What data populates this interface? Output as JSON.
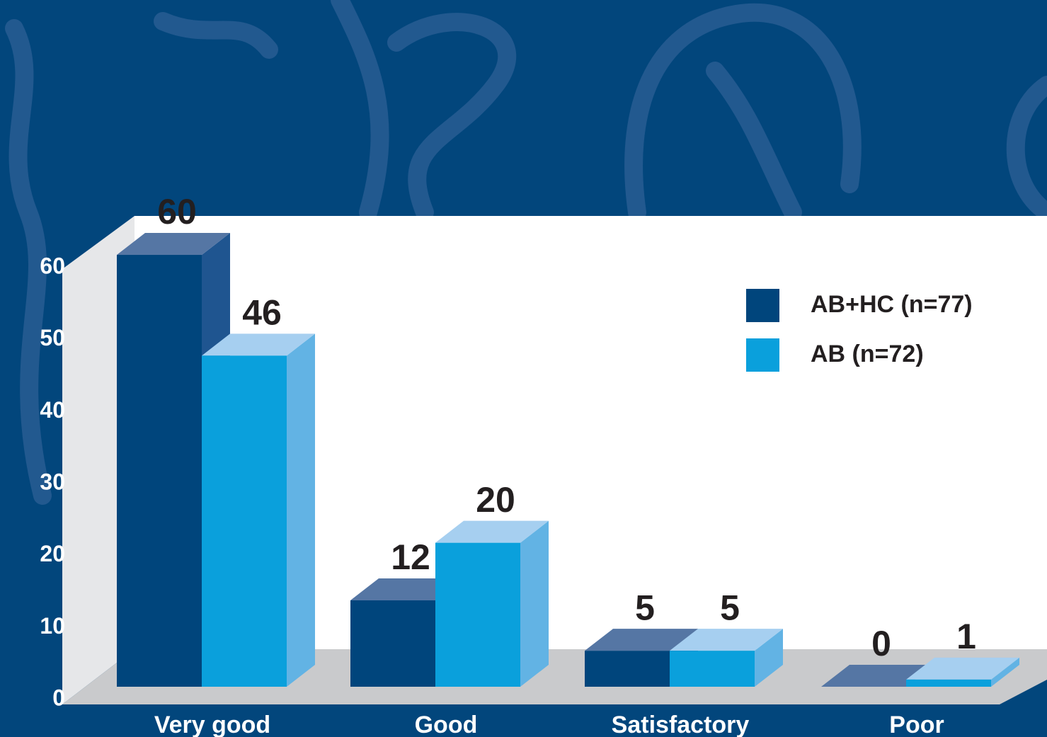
{
  "chart_data": {
    "type": "bar",
    "categories": [
      "Very good",
      "Good",
      "Satisfactory",
      "Poor"
    ],
    "series": [
      {
        "name": "AB+HC (n=77)",
        "color": "#00457c",
        "values": [
          60,
          12,
          5,
          0
        ]
      },
      {
        "name": "AB (n=72)",
        "color": "#0aa0dc",
        "values": [
          46,
          20,
          5,
          1
        ]
      }
    ],
    "ylim": [
      0,
      60
    ],
    "yticks": [
      0,
      10,
      20,
      30,
      40,
      50,
      60
    ],
    "grid": false,
    "legend": "upper right"
  }
}
